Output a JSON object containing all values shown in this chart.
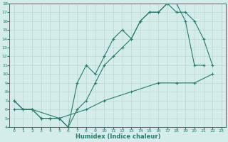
{
  "xlabel": "Humidex (Indice chaleur)",
  "bg_color": "#d4ecea",
  "line_color": "#2a7a6a",
  "grid_color": "#b8d8d4",
  "xlim": [
    -0.5,
    23.5
  ],
  "ylim": [
    4,
    18
  ],
  "xticks": [
    0,
    1,
    2,
    3,
    4,
    5,
    6,
    7,
    8,
    9,
    10,
    11,
    12,
    13,
    14,
    15,
    16,
    17,
    18,
    19,
    20,
    21,
    22,
    23
  ],
  "yticks": [
    4,
    5,
    6,
    7,
    8,
    9,
    10,
    11,
    12,
    13,
    14,
    15,
    16,
    17,
    18
  ],
  "line1_x": [
    0,
    1,
    2,
    3,
    4,
    5,
    6,
    7,
    8,
    9,
    10,
    11,
    12,
    13,
    14,
    15,
    16,
    17,
    18,
    19,
    20,
    21
  ],
  "line1_y": [
    7,
    6,
    6,
    5,
    5,
    5,
    4,
    9,
    11,
    10,
    12,
    14,
    15,
    14,
    16,
    17,
    17,
    18,
    18,
    16,
    11,
    11
  ],
  "line2_x": [
    0,
    1,
    2,
    3,
    4,
    5,
    6,
    7,
    8,
    9,
    10,
    11,
    12,
    13,
    14,
    15,
    16,
    17,
    18,
    19,
    20,
    21,
    22
  ],
  "line2_y": [
    7,
    6,
    6,
    5,
    5,
    5,
    4,
    6,
    7,
    9,
    11,
    12,
    13,
    14,
    16,
    17,
    17,
    18,
    17,
    17,
    16,
    14,
    11
  ],
  "line3_x": [
    0,
    2,
    5,
    8,
    10,
    13,
    16,
    18,
    20,
    22
  ],
  "line3_y": [
    6,
    6,
    5,
    6,
    7,
    8,
    9,
    9,
    9,
    10
  ]
}
